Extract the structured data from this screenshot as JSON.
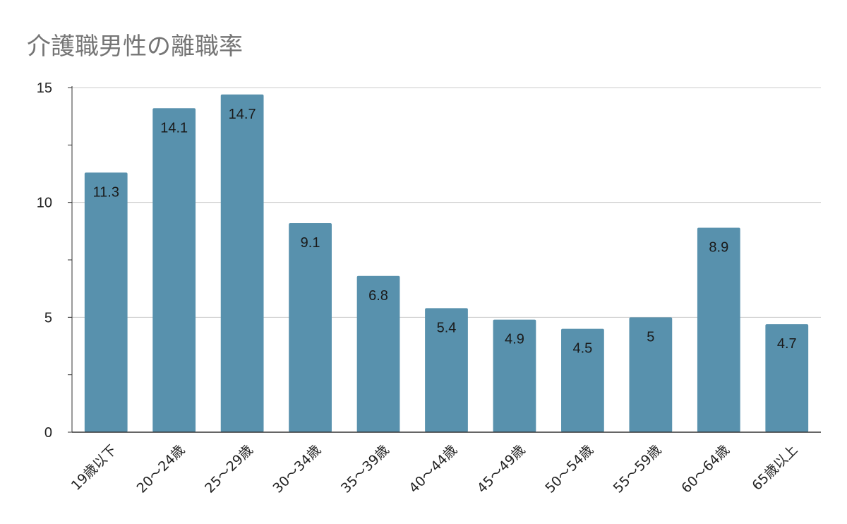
{
  "chart_data": {
    "type": "bar",
    "title": "介護職男性の離職率",
    "xlabel": "",
    "ylabel": "",
    "categories": [
      "19歳以下",
      "20～24歳",
      "25～29歳",
      "30～34歳",
      "35～39歳",
      "40～44歳",
      "45～49歳",
      "50～54歳",
      "55～59歳",
      "60～64歳",
      "65歳以上"
    ],
    "values": [
      11.3,
      14.1,
      14.7,
      9.1,
      6.8,
      5.4,
      4.9,
      4.5,
      5,
      8.9,
      4.7
    ],
    "data_labels": [
      "11.3",
      "14.1",
      "14.7",
      "9.1",
      "6.8",
      "5.4",
      "4.9",
      "4.5",
      "5",
      "8.9",
      "4.7"
    ],
    "ylim": [
      0,
      15
    ],
    "yticks": [
      "0",
      "5",
      "10",
      "15"
    ],
    "grid": true,
    "legend": "none",
    "bar_color": "#5891ad"
  }
}
